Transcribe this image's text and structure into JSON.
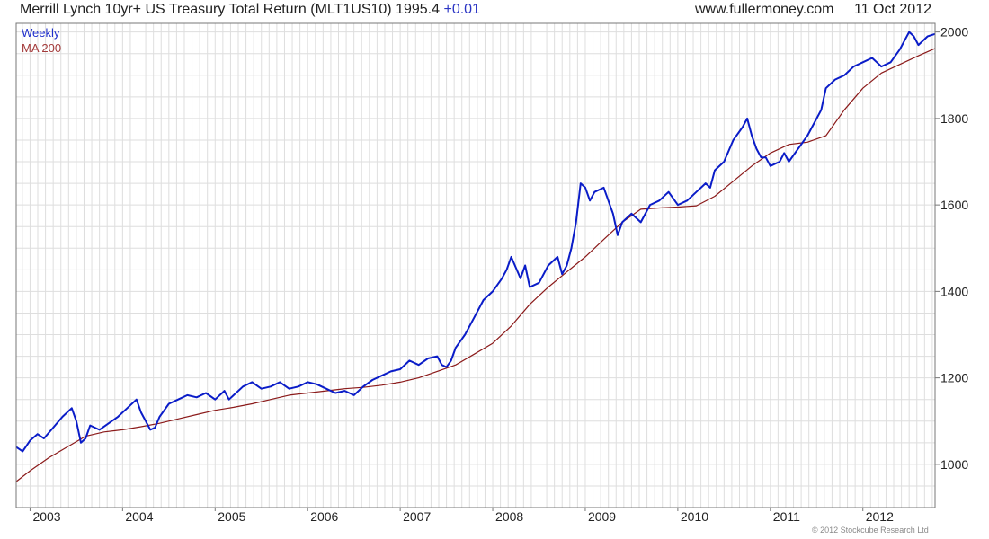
{
  "header": {
    "title": "Merrill Lynch 10yr+ US Treasury Total Return (MLT1US10) 1995.4",
    "change": "+0.01",
    "site": "www.fullermoney.com",
    "date": "11 Oct 2012"
  },
  "footer": {
    "copyright": "© 2012 Stockcube Research Ltd"
  },
  "colors": {
    "weekly": "#0a1cc8",
    "ma": "#8b1a1a",
    "grid": "#dedede",
    "frame": "#777777"
  },
  "chart_data": {
    "type": "line",
    "legend": {
      "placement": "top-left",
      "entries": [
        "Weekly",
        "MA 200"
      ]
    },
    "grid": true,
    "xlim": [
      2002.85,
      2012.78
    ],
    "ylim": [
      900,
      2020
    ],
    "x_ticks": [
      {
        "label": "2003",
        "value": 2003
      },
      {
        "label": "2004",
        "value": 2004
      },
      {
        "label": "2005",
        "value": 2005
      },
      {
        "label": "2006",
        "value": 2006
      },
      {
        "label": "2007",
        "value": 2007
      },
      {
        "label": "2008",
        "value": 2008
      },
      {
        "label": "2009",
        "value": 2009
      },
      {
        "label": "2010",
        "value": 2010
      },
      {
        "label": "2011",
        "value": 2011
      },
      {
        "label": "2012",
        "value": 2012
      }
    ],
    "y_ticks": [
      1000,
      1200,
      1400,
      1600,
      1800,
      2000
    ],
    "series": [
      {
        "name": "Weekly",
        "x": [
          2002.85,
          2002.92,
          2003.0,
          2003.08,
          2003.15,
          2003.25,
          2003.35,
          2003.45,
          2003.5,
          2003.55,
          2003.6,
          2003.65,
          2003.75,
          2003.85,
          2003.95,
          2004.05,
          2004.15,
          2004.2,
          2004.25,
          2004.3,
          2004.35,
          2004.4,
          2004.5,
          2004.6,
          2004.7,
          2004.8,
          2004.9,
          2005.0,
          2005.1,
          2005.15,
          2005.2,
          2005.3,
          2005.4,
          2005.5,
          2005.6,
          2005.7,
          2005.8,
          2005.9,
          2006.0,
          2006.1,
          2006.2,
          2006.3,
          2006.4,
          2006.5,
          2006.6,
          2006.7,
          2006.8,
          2006.9,
          2007.0,
          2007.1,
          2007.2,
          2007.3,
          2007.4,
          2007.45,
          2007.5,
          2007.55,
          2007.6,
          2007.7,
          2007.8,
          2007.9,
          2008.0,
          2008.1,
          2008.15,
          2008.2,
          2008.3,
          2008.35,
          2008.4,
          2008.5,
          2008.6,
          2008.7,
          2008.75,
          2008.8,
          2008.85,
          2008.9,
          2008.95,
          2009.0,
          2009.05,
          2009.1,
          2009.2,
          2009.3,
          2009.35,
          2009.4,
          2009.5,
          2009.6,
          2009.7,
          2009.8,
          2009.9,
          2010.0,
          2010.1,
          2010.2,
          2010.3,
          2010.35,
          2010.4,
          2010.5,
          2010.6,
          2010.7,
          2010.75,
          2010.8,
          2010.85,
          2010.9,
          2010.95,
          2011.0,
          2011.1,
          2011.15,
          2011.2,
          2011.3,
          2011.4,
          2011.5,
          2011.55,
          2011.6,
          2011.7,
          2011.8,
          2011.9,
          2012.0,
          2012.1,
          2012.15,
          2012.2,
          2012.3,
          2012.4,
          2012.45,
          2012.5,
          2012.55,
          2012.6,
          2012.7,
          2012.78
        ],
        "values": [
          1040,
          1030,
          1055,
          1070,
          1060,
          1085,
          1110,
          1130,
          1100,
          1050,
          1060,
          1090,
          1080,
          1095,
          1110,
          1130,
          1150,
          1120,
          1100,
          1080,
          1085,
          1110,
          1140,
          1150,
          1160,
          1155,
          1165,
          1150,
          1170,
          1150,
          1160,
          1180,
          1190,
          1175,
          1180,
          1190,
          1175,
          1180,
          1190,
          1185,
          1175,
          1165,
          1170,
          1160,
          1180,
          1195,
          1205,
          1215,
          1220,
          1240,
          1230,
          1245,
          1250,
          1230,
          1225,
          1240,
          1270,
          1300,
          1340,
          1380,
          1400,
          1430,
          1450,
          1480,
          1430,
          1460,
          1410,
          1420,
          1460,
          1480,
          1440,
          1460,
          1500,
          1560,
          1650,
          1640,
          1610,
          1630,
          1640,
          1580,
          1530,
          1560,
          1580,
          1560,
          1600,
          1610,
          1630,
          1600,
          1610,
          1630,
          1650,
          1640,
          1680,
          1700,
          1750,
          1780,
          1800,
          1760,
          1730,
          1710,
          1710,
          1690,
          1700,
          1720,
          1700,
          1730,
          1760,
          1800,
          1820,
          1870,
          1890,
          1900,
          1920,
          1930,
          1940,
          1930,
          1920,
          1930,
          1960,
          1980,
          2000,
          1990,
          1970,
          1990,
          1995.4
        ]
      },
      {
        "name": "MA 200",
        "x": [
          2002.85,
          2003.0,
          2003.2,
          2003.4,
          2003.6,
          2003.8,
          2004.0,
          2004.2,
          2004.4,
          2004.6,
          2004.8,
          2005.0,
          2005.2,
          2005.4,
          2005.6,
          2005.8,
          2006.0,
          2006.2,
          2006.4,
          2006.6,
          2006.8,
          2007.0,
          2007.2,
          2007.4,
          2007.6,
          2007.8,
          2008.0,
          2008.2,
          2008.4,
          2008.6,
          2008.8,
          2009.0,
          2009.2,
          2009.4,
          2009.6,
          2009.8,
          2010.0,
          2010.2,
          2010.4,
          2010.6,
          2010.8,
          2011.0,
          2011.2,
          2011.4,
          2011.6,
          2011.8,
          2012.0,
          2012.2,
          2012.4,
          2012.6,
          2012.78
        ],
        "values": [
          960,
          985,
          1015,
          1040,
          1065,
          1075,
          1080,
          1087,
          1095,
          1105,
          1115,
          1125,
          1132,
          1140,
          1150,
          1160,
          1165,
          1170,
          1175,
          1178,
          1183,
          1190,
          1200,
          1215,
          1230,
          1255,
          1280,
          1320,
          1370,
          1410,
          1445,
          1480,
          1520,
          1560,
          1590,
          1593,
          1595,
          1598,
          1620,
          1655,
          1690,
          1720,
          1740,
          1745,
          1760,
          1820,
          1870,
          1905,
          1925,
          1945,
          1962
        ]
      }
    ]
  }
}
